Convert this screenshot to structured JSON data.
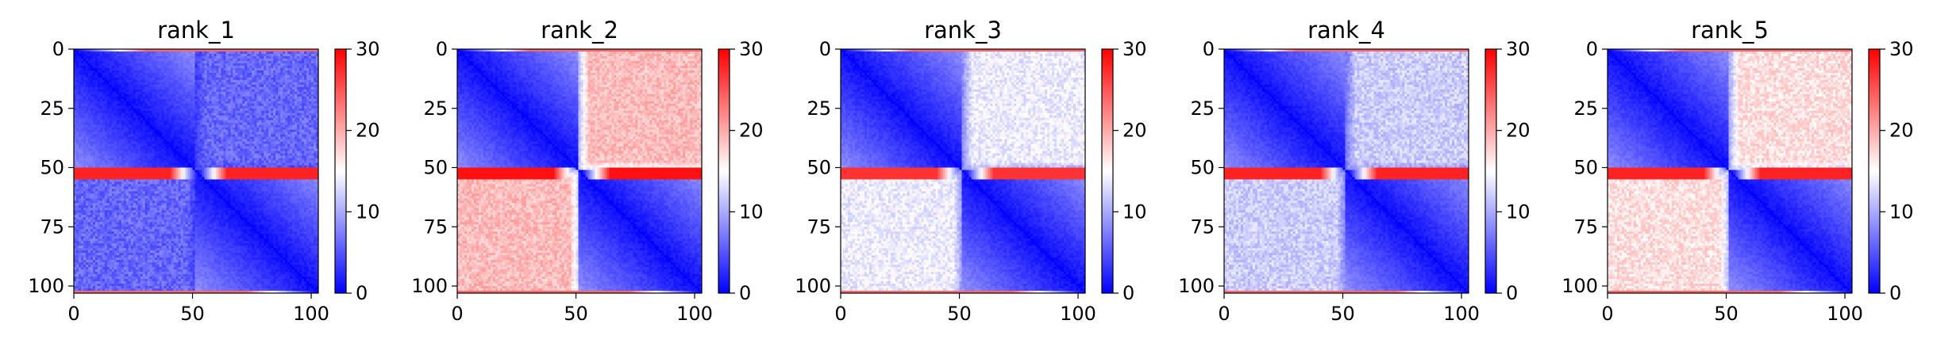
{
  "chart_data": [
    {
      "type": "heatmap",
      "title": "rank_1",
      "xlabel": "",
      "ylabel": "",
      "xlim": [
        0,
        103
      ],
      "ylim": [
        103,
        0
      ],
      "x_ticks": [
        0,
        50,
        100
      ],
      "y_ticks": [
        0,
        25,
        50,
        75,
        100
      ],
      "colorbar": {
        "vmin": 0,
        "vmax": 30,
        "ticks": [
          0,
          10,
          20,
          30
        ],
        "colors": [
          "#0000ff",
          "#ffffff",
          "#ff0000"
        ]
      },
      "matrix_pattern": {
        "off_block_level": 6,
        "band_row_value": 28,
        "band_row": 52,
        "edge_row_value": 24,
        "diagonal_value": 0
      }
    },
    {
      "type": "heatmap",
      "title": "rank_2",
      "xlabel": "",
      "ylabel": "",
      "xlim": [
        0,
        103
      ],
      "ylim": [
        103,
        0
      ],
      "x_ticks": [
        0,
        50,
        100
      ],
      "y_ticks": [
        0,
        25,
        50,
        75,
        100
      ],
      "colorbar": {
        "vmin": 0,
        "vmax": 30,
        "ticks": [
          0,
          10,
          20,
          30
        ],
        "colors": [
          "#0000ff",
          "#ffffff",
          "#ff0000"
        ]
      },
      "matrix_pattern": {
        "off_block_level": 19,
        "band_row_value": 29,
        "band_row": 52,
        "edge_row_value": 24,
        "diagonal_value": 0
      }
    },
    {
      "type": "heatmap",
      "title": "rank_3",
      "xlabel": "",
      "ylabel": "",
      "xlim": [
        0,
        103
      ],
      "ylim": [
        103,
        0
      ],
      "x_ticks": [
        0,
        50,
        100
      ],
      "y_ticks": [
        0,
        25,
        50,
        75,
        100
      ],
      "colorbar": {
        "vmin": 0,
        "vmax": 30,
        "ticks": [
          0,
          10,
          20,
          30
        ],
        "colors": [
          "#0000ff",
          "#ffffff",
          "#ff0000"
        ]
      },
      "matrix_pattern": {
        "off_block_level": 14,
        "band_row_value": 27,
        "band_row": 52,
        "edge_row_value": 24,
        "diagonal_value": 0
      }
    },
    {
      "type": "heatmap",
      "title": "rank_4",
      "xlabel": "",
      "ylabel": "",
      "xlim": [
        0,
        103
      ],
      "ylim": [
        103,
        0
      ],
      "x_ticks": [
        0,
        50,
        100
      ],
      "y_ticks": [
        0,
        25,
        50,
        75,
        100
      ],
      "colorbar": {
        "vmin": 0,
        "vmax": 30,
        "ticks": [
          0,
          10,
          20,
          30
        ],
        "colors": [
          "#0000ff",
          "#ffffff",
          "#ff0000"
        ]
      },
      "matrix_pattern": {
        "off_block_level": 12,
        "band_row_value": 28,
        "band_row": 52,
        "edge_row_value": 24,
        "diagonal_value": 0
      }
    },
    {
      "type": "heatmap",
      "title": "rank_5",
      "xlabel": "",
      "ylabel": "",
      "xlim": [
        0,
        103
      ],
      "ylim": [
        103,
        0
      ],
      "x_ticks": [
        0,
        50,
        100
      ],
      "y_ticks": [
        0,
        25,
        50,
        75,
        100
      ],
      "colorbar": {
        "vmin": 0,
        "vmax": 30,
        "ticks": [
          0,
          10,
          20,
          30
        ],
        "colors": [
          "#0000ff",
          "#ffffff",
          "#ff0000"
        ]
      },
      "matrix_pattern": {
        "off_block_level": 17,
        "band_row_value": 28,
        "band_row": 52,
        "edge_row_value": 24,
        "diagonal_value": 0
      }
    }
  ]
}
